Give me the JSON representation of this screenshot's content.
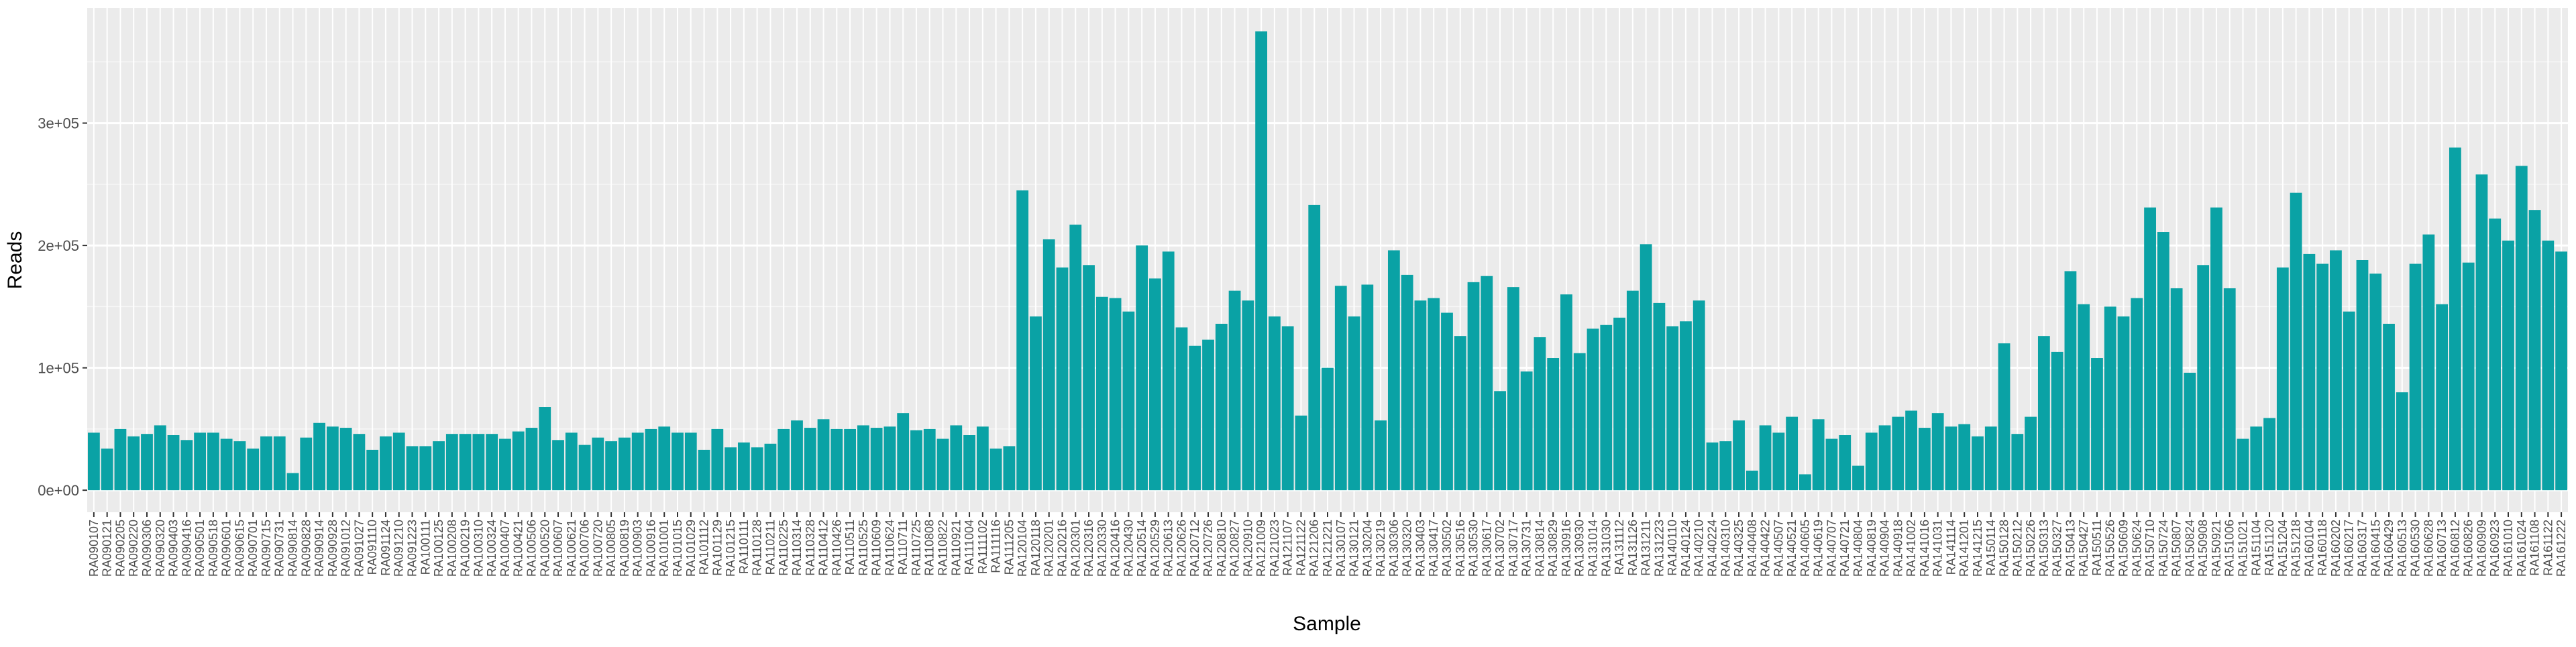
{
  "chart_data": {
    "type": "bar",
    "x_label": "Sample",
    "y_label": "Reads",
    "color": "#0aa2a5",
    "grid": true,
    "categories": [
      "RA090107",
      "RA090121",
      "RA090205",
      "RA090220",
      "RA090306",
      "RA090320",
      "RA090403",
      "RA090416",
      "RA090501",
      "RA090518",
      "RA090601",
      "RA090615",
      "RA090701",
      "RA090715",
      "RA090731",
      "RA090814",
      "RA090828",
      "RA090914",
      "RA090928",
      "RA091012",
      "RA091027",
      "RA091110",
      "RA091124",
      "RA091210",
      "RA091223",
      "RA100111",
      "RA100125",
      "RA100208",
      "RA100219",
      "RA100310",
      "RA100324",
      "RA100407",
      "RA100421",
      "RA100506",
      "RA100520",
      "RA100607",
      "RA100621",
      "RA100706",
      "RA100720",
      "RA100805",
      "RA100819",
      "RA100903",
      "RA100916",
      "RA101001",
      "RA101015",
      "RA101029",
      "RA101112",
      "RA101129",
      "RA101215",
      "RA110111",
      "RA110128",
      "RA110211",
      "RA110225",
      "RA110314",
      "RA110328",
      "RA110412",
      "RA110426",
      "RA110511",
      "RA110525",
      "RA110609",
      "RA110624",
      "RA110711",
      "RA110725",
      "RA110808",
      "RA110822",
      "RA110921",
      "RA111004",
      "RA111102",
      "RA111116",
      "RA111205",
      "RA120104",
      "RA120118",
      "RA120201",
      "RA120216",
      "RA120301",
      "RA120316",
      "RA120330",
      "RA120416",
      "RA120430",
      "RA120514",
      "RA120529",
      "RA120613",
      "RA120626",
      "RA120712",
      "RA120726",
      "RA120810",
      "RA120827",
      "RA120910",
      "RA121009",
      "RA121023",
      "RA121107",
      "RA121122",
      "RA121206",
      "RA121221",
      "RA130107",
      "RA130121",
      "RA130204",
      "RA130219",
      "RA130306",
      "RA130320",
      "RA130403",
      "RA130417",
      "RA130502",
      "RA130516",
      "RA130530",
      "RA130617",
      "RA130702",
      "RA130717",
      "RA130731",
      "RA130814",
      "RA130829",
      "RA130916",
      "RA130930",
      "RA131014",
      "RA131030",
      "RA131112",
      "RA131126",
      "RA131211",
      "RA131223",
      "RA140110",
      "RA140124",
      "RA140210",
      "RA140224",
      "RA140310",
      "RA140325",
      "RA140408",
      "RA140422",
      "RA140507",
      "RA140521",
      "RA140605",
      "RA140619",
      "RA140707",
      "RA140721",
      "RA140804",
      "RA140819",
      "RA140904",
      "RA140918",
      "RA141002",
      "RA141016",
      "RA141031",
      "RA141114",
      "RA141201",
      "RA141215",
      "RA150114",
      "RA150128",
      "RA150212",
      "RA150226",
      "RA150313",
      "RA150327",
      "RA150413",
      "RA150427",
      "RA150511",
      "RA150526",
      "RA150609",
      "RA150624",
      "RA150710",
      "RA150724",
      "RA150807",
      "RA150824",
      "RA150908",
      "RA150921",
      "RA151006",
      "RA151021",
      "RA151104",
      "RA151120",
      "RA151204",
      "RA151218",
      "RA160104",
      "RA160118",
      "RA160202",
      "RA160217",
      "RA160317",
      "RA160415",
      "RA160429",
      "RA160513",
      "RA160530",
      "RA160628",
      "RA160713",
      "RA160812",
      "RA160826",
      "RA160909",
      "RA160923",
      "RA161010",
      "RA161024",
      "RA161108",
      "RA161122",
      "RA161222"
    ],
    "values": [
      47000,
      34000,
      50000,
      44000,
      46000,
      53000,
      45000,
      41000,
      47000,
      47000,
      42000,
      40000,
      34000,
      44000,
      44000,
      14000,
      43000,
      55000,
      52000,
      51000,
      46000,
      33000,
      44000,
      47000,
      36000,
      36000,
      40000,
      46000,
      46000,
      46000,
      46000,
      42000,
      48000,
      51000,
      68000,
      41000,
      47000,
      37000,
      43000,
      40000,
      43000,
      47000,
      50000,
      52000,
      47000,
      47000,
      33000,
      50000,
      35000,
      39000,
      35000,
      38000,
      50000,
      57000,
      51000,
      58000,
      50000,
      50000,
      53000,
      51000,
      52000,
      63000,
      49000,
      50000,
      42000,
      53000,
      45000,
      52000,
      34000,
      36000,
      245000,
      142000,
      205000,
      182000,
      217000,
      184000,
      158000,
      157000,
      146000,
      200000,
      173000,
      195000,
      133000,
      118000,
      123000,
      136000,
      163000,
      155000,
      375000,
      142000,
      134000,
      61000,
      233000,
      100000,
      167000,
      142000,
      168000,
      57000,
      196000,
      176000,
      155000,
      157000,
      145000,
      126000,
      170000,
      175000,
      81000,
      166000,
      97000,
      125000,
      108000,
      160000,
      112000,
      132000,
      135000,
      141000,
      163000,
      201000,
      153000,
      134000,
      138000,
      155000,
      39000,
      40000,
      57000,
      16000,
      53000,
      47000,
      60000,
      13000,
      58000,
      42000,
      45000,
      20000,
      47000,
      53000,
      60000,
      65000,
      51000,
      63000,
      52000,
      54000,
      44000,
      52000,
      120000,
      46000,
      60000,
      126000,
      113000,
      179000,
      152000,
      108000,
      150000,
      142000,
      157000,
      231000,
      211000,
      165000,
      96000,
      184000,
      231000,
      165000,
      42000,
      52000,
      59000,
      182000,
      243000,
      193000,
      185000,
      196000,
      146000,
      188000,
      177000,
      136000,
      80000,
      185000,
      209000,
      152000,
      280000,
      186000,
      258000,
      222000,
      204000,
      265000,
      229000,
      204000,
      195000
    ],
    "ylim": [
      -18000,
      394000
    ],
    "yticks": [
      {
        "value": 0,
        "label": "0e+00"
      },
      {
        "value": 100000,
        "label": "1e+05"
      },
      {
        "value": 200000,
        "label": "2e+05"
      },
      {
        "value": 300000,
        "label": "3e+05"
      }
    ]
  }
}
